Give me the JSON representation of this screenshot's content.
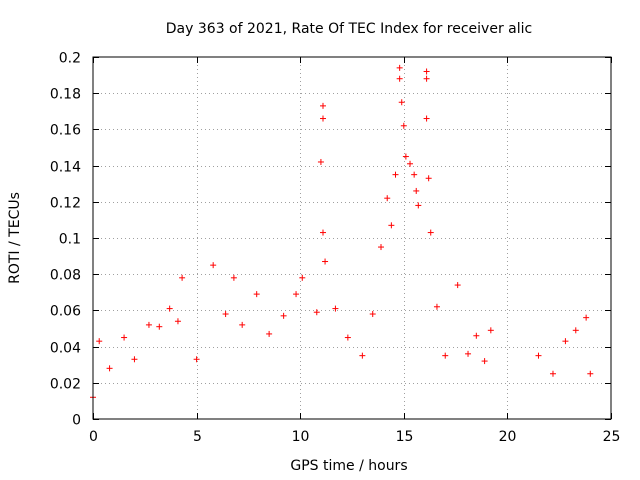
{
  "chart_data": {
    "type": "scatter",
    "title": "Day 363 of 2021, Rate Of TEC Index for receiver alic",
    "xlabel": "GPS time / hours",
    "ylabel": "ROTI / TECUs",
    "xlim": [
      0,
      25
    ],
    "ylim": [
      0,
      0.2
    ],
    "xticks": [
      0,
      5,
      10,
      15,
      20,
      25
    ],
    "yticks": [
      0,
      0.02,
      0.04,
      0.06,
      0.08,
      0.1,
      0.12,
      0.14,
      0.16,
      0.18,
      0.2
    ],
    "xtick_labels": [
      "0",
      "5",
      "10",
      "15",
      "20",
      "25"
    ],
    "ytick_labels": [
      "0",
      "0.02",
      "0.04",
      "0.06",
      "0.08",
      "0.1",
      "0.12",
      "0.14",
      "0.16",
      "0.18",
      "0.2"
    ],
    "grid": true,
    "marker": "+",
    "color": "#ff0000",
    "series": [
      {
        "values": [
          [
            0.0,
            0.012
          ],
          [
            0.3,
            0.043
          ],
          [
            0.8,
            0.028
          ],
          [
            1.5,
            0.045
          ],
          [
            2.0,
            0.033
          ],
          [
            2.7,
            0.052
          ],
          [
            3.2,
            0.051
          ],
          [
            3.7,
            0.061
          ],
          [
            4.1,
            0.054
          ],
          [
            4.3,
            0.078
          ],
          [
            5.0,
            0.033
          ],
          [
            5.8,
            0.085
          ],
          [
            6.4,
            0.058
          ],
          [
            6.8,
            0.078
          ],
          [
            7.2,
            0.052
          ],
          [
            7.9,
            0.069
          ],
          [
            8.5,
            0.047
          ],
          [
            9.2,
            0.057
          ],
          [
            9.8,
            0.069
          ],
          [
            10.1,
            0.078
          ],
          [
            10.8,
            0.059
          ],
          [
            11.1,
            0.173
          ],
          [
            11.1,
            0.166
          ],
          [
            11.0,
            0.142
          ],
          [
            11.1,
            0.103
          ],
          [
            11.2,
            0.087
          ],
          [
            11.7,
            0.061
          ],
          [
            12.3,
            0.045
          ],
          [
            13.0,
            0.035
          ],
          [
            13.5,
            0.058
          ],
          [
            13.9,
            0.095
          ],
          [
            14.2,
            0.122
          ],
          [
            14.4,
            0.107
          ],
          [
            14.6,
            0.135
          ],
          [
            14.8,
            0.194
          ],
          [
            14.8,
            0.188
          ],
          [
            14.9,
            0.175
          ],
          [
            15.0,
            0.162
          ],
          [
            15.1,
            0.145
          ],
          [
            15.3,
            0.141
          ],
          [
            15.5,
            0.135
          ],
          [
            15.6,
            0.126
          ],
          [
            15.7,
            0.118
          ],
          [
            16.1,
            0.192
          ],
          [
            16.1,
            0.188
          ],
          [
            16.1,
            0.166
          ],
          [
            16.2,
            0.133
          ],
          [
            16.3,
            0.103
          ],
          [
            16.6,
            0.062
          ],
          [
            17.0,
            0.035
          ],
          [
            17.6,
            0.074
          ],
          [
            18.1,
            0.036
          ],
          [
            18.5,
            0.046
          ],
          [
            18.9,
            0.032
          ],
          [
            19.2,
            0.049
          ],
          [
            21.5,
            0.035
          ],
          [
            22.2,
            0.025
          ],
          [
            22.8,
            0.043
          ],
          [
            23.3,
            0.049
          ],
          [
            23.8,
            0.056
          ],
          [
            24.0,
            0.025
          ]
        ]
      }
    ]
  }
}
